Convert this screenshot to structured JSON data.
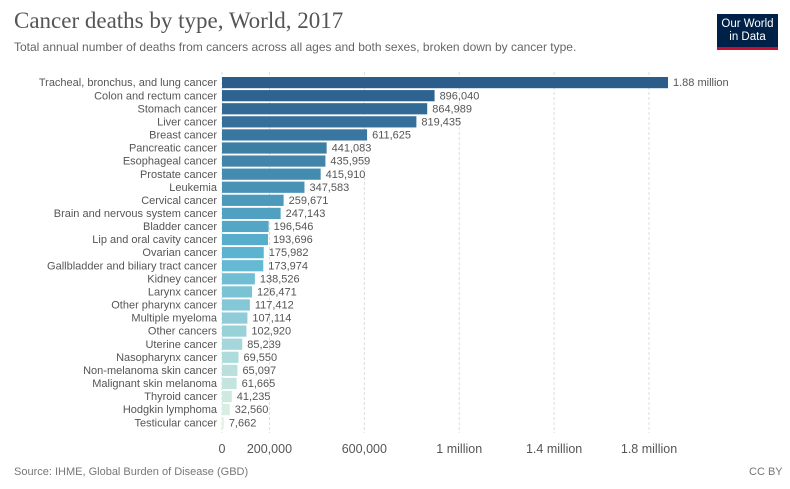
{
  "header": {
    "title": "Cancer deaths by type, World, 2017",
    "subtitle": "Total annual number of deaths from cancers across all ages and both sexes, broken down by cancer type.",
    "logo_line1": "Our World",
    "logo_line2": "in Data"
  },
  "footer": {
    "source": "Source: IHME, Global Burden of Disease (GBD)",
    "license": "CC BY"
  },
  "colors": {
    "bar_dark": "#2b5c8a",
    "bar_mid": "#5ab4d1",
    "bar_light": "#e3f3e3",
    "grid": "#dddddd"
  },
  "chart_data": {
    "type": "bar",
    "orientation": "horizontal",
    "title": "Cancer deaths by type, World, 2017",
    "subtitle": "Total annual number of deaths from cancers across all ages and both sexes, broken down by cancer type.",
    "categories": [
      "Tracheal, bronchus, and lung cancer",
      "Colon and rectum cancer",
      "Stomach cancer",
      "Liver cancer",
      "Breast cancer",
      "Pancreatic cancer",
      "Esophageal cancer",
      "Prostate cancer",
      "Leukemia",
      "Cervical cancer",
      "Brain and nervous system cancer",
      "Bladder cancer",
      "Lip and oral cavity cancer",
      "Ovarian cancer",
      "Gallbladder and biliary tract cancer",
      "Kidney cancer",
      "Larynx cancer",
      "Other pharynx cancer",
      "Multiple myeloma",
      "Other cancers",
      "Uterine cancer",
      "Nasopharynx cancer",
      "Non-melanoma skin cancer",
      "Malignant skin melanoma",
      "Thyroid cancer",
      "Hodgkin lymphoma",
      "Testicular cancer"
    ],
    "values": [
      1880000,
      896040,
      864989,
      819435,
      611625,
      441083,
      435959,
      415910,
      347583,
      259671,
      247143,
      196546,
      193696,
      175982,
      173974,
      138526,
      126471,
      117412,
      107114,
      102920,
      85239,
      69550,
      65097,
      61665,
      41235,
      32560,
      7662
    ],
    "value_labels": [
      "1.88 million",
      "896,040",
      "864,989",
      "819,435",
      "611,625",
      "441,083",
      "435,959",
      "415,910",
      "347,583",
      "259,671",
      "247,143",
      "196,546",
      "193,696",
      "175,982",
      "173,974",
      "138,526",
      "126,471",
      "117,412",
      "107,114",
      "102,920",
      "85,239",
      "69,550",
      "65,097",
      "61,665",
      "41,235",
      "32,560",
      "7,662"
    ],
    "x_ticks": [
      0,
      200000,
      600000,
      1000000,
      1400000,
      1800000
    ],
    "x_tick_labels": [
      "0",
      "200,000",
      "600,000",
      "1 million",
      "1.4 million",
      "1.8 million"
    ],
    "xlim": [
      0,
      1880000
    ],
    "grid": true,
    "legend": "none"
  }
}
